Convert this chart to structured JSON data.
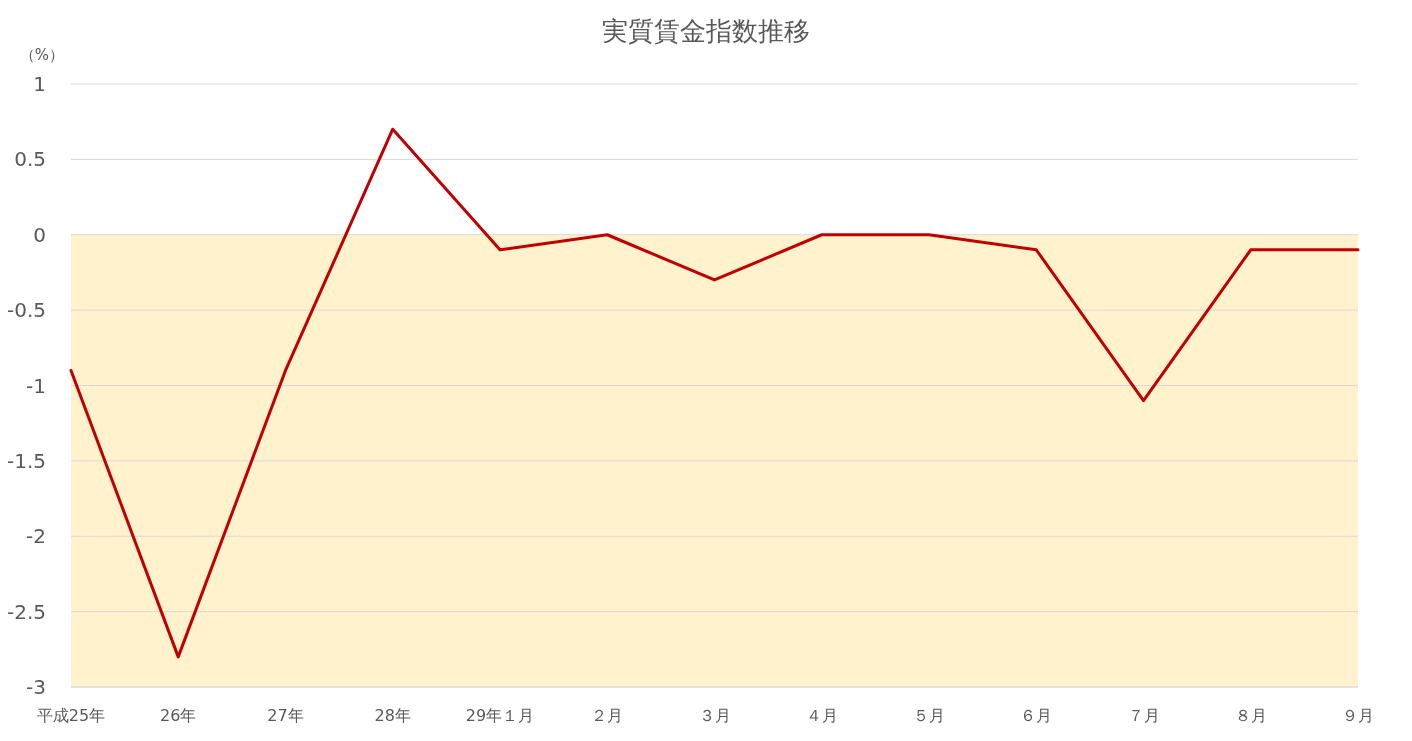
{
  "chart_data": {
    "type": "line",
    "title": "実質賃金指数推移",
    "ylabel": "（%）",
    "categories": [
      "平成25年",
      "26年",
      "27年",
      "28年",
      "29年１月",
      "２月",
      "３月",
      "４月",
      "５月",
      "６月",
      "７月",
      "８月",
      "９月"
    ],
    "series": [
      {
        "color": "#c00000",
        "values": [
          -0.9,
          -2.8,
          -0.9,
          0.7,
          -0.1,
          0,
          -0.3,
          0,
          0,
          -0.1,
          -1.1,
          -0.1,
          -0.1
        ]
      }
    ],
    "ylim": [
      -3,
      1
    ],
    "yticks": [
      -3,
      -2.5,
      -2,
      -1.5,
      -1,
      -0.5,
      0,
      0.5,
      1
    ],
    "grid": "y",
    "bands": [
      {
        "axis": "y",
        "from": 0,
        "to": -3,
        "color": "#fff2cc"
      }
    ]
  }
}
